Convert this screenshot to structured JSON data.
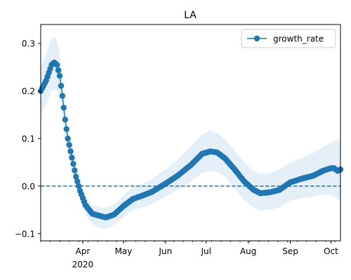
{
  "chart_data": {
    "type": "line",
    "title": "LA",
    "xlabel": "",
    "ylabel": "",
    "x_range": [
      "2020-03-01",
      "2020-10-08"
    ],
    "ylim": [
      -0.115,
      0.34
    ],
    "y_ticks": [
      -0.1,
      0.0,
      0.1,
      0.2,
      0.3
    ],
    "y_tick_labels": [
      "−0.1",
      "0.0",
      "0.1",
      "0.2",
      "0.3"
    ],
    "x_ticks": [
      {
        "date": "2020-04-01",
        "label": "Apr",
        "sublabel": "2020"
      },
      {
        "date": "2020-05-01",
        "label": "May",
        "sublabel": ""
      },
      {
        "date": "2020-06-01",
        "label": "Jun",
        "sublabel": ""
      },
      {
        "date": "2020-07-01",
        "label": "Jul",
        "sublabel": ""
      },
      {
        "date": "2020-08-01",
        "label": "Aug",
        "sublabel": ""
      },
      {
        "date": "2020-09-01",
        "label": "Sep",
        "sublabel": ""
      },
      {
        "date": "2020-10-01",
        "label": "Oct",
        "sublabel": ""
      }
    ],
    "minor_tick_step_days": 7,
    "grid": false,
    "legend": {
      "position": "top-right",
      "entries": [
        "growth_rate"
      ]
    },
    "reference_line": {
      "y": 0.0,
      "style": "dashed",
      "color": "#1f77b4"
    },
    "colors": {
      "series": "#1f77b4",
      "band": "#c6dbef"
    },
    "series": [
      {
        "name": "growth_rate",
        "x_start": "2020-03-01",
        "x_end": "2020-10-08",
        "anchors": [
          [
            "2020-03-01",
            0.2,
            0.15,
            0.25
          ],
          [
            "2020-03-05",
            0.222,
            0.17,
            0.28
          ],
          [
            "2020-03-09",
            0.255,
            0.2,
            0.31
          ],
          [
            "2020-03-11",
            0.26,
            0.205,
            0.315
          ],
          [
            "2020-03-13",
            0.255,
            0.2,
            0.305
          ],
          [
            "2020-03-15",
            0.232,
            0.185,
            0.28
          ],
          [
            "2020-03-17",
            0.19,
            0.15,
            0.235
          ],
          [
            "2020-03-19",
            0.14,
            0.105,
            0.175
          ],
          [
            "2020-03-21",
            0.1,
            0.07,
            0.13
          ],
          [
            "2020-03-24",
            0.06,
            0.035,
            0.085
          ],
          [
            "2020-03-27",
            0.02,
            0.0,
            0.04
          ],
          [
            "2020-03-30",
            -0.01,
            -0.03,
            0.005
          ],
          [
            "2020-04-03",
            -0.04,
            -0.06,
            -0.022
          ],
          [
            "2020-04-08",
            -0.058,
            -0.08,
            -0.04
          ],
          [
            "2020-04-14",
            -0.063,
            -0.088,
            -0.045
          ],
          [
            "2020-04-18",
            -0.066,
            -0.09,
            -0.045
          ],
          [
            "2020-04-24",
            -0.06,
            -0.082,
            -0.038
          ],
          [
            "2020-05-01",
            -0.042,
            -0.065,
            -0.02
          ],
          [
            "2020-05-08",
            -0.027,
            -0.05,
            -0.002
          ],
          [
            "2020-05-15",
            -0.02,
            -0.045,
            0.005
          ],
          [
            "2020-05-22",
            -0.012,
            -0.038,
            0.015
          ],
          [
            "2020-06-01",
            0.005,
            -0.022,
            0.035
          ],
          [
            "2020-06-10",
            0.022,
            -0.008,
            0.055
          ],
          [
            "2020-06-20",
            0.045,
            0.01,
            0.085
          ],
          [
            "2020-06-28",
            0.068,
            0.028,
            0.108
          ],
          [
            "2020-07-04",
            0.073,
            0.032,
            0.118
          ],
          [
            "2020-07-09",
            0.071,
            0.03,
            0.112
          ],
          [
            "2020-07-15",
            0.058,
            0.02,
            0.098
          ],
          [
            "2020-07-22",
            0.035,
            -0.005,
            0.075
          ],
          [
            "2020-07-29",
            0.01,
            -0.03,
            0.05
          ],
          [
            "2020-08-05",
            -0.008,
            -0.045,
            0.032
          ],
          [
            "2020-08-10",
            -0.015,
            -0.052,
            0.025
          ],
          [
            "2020-08-17",
            -0.013,
            -0.05,
            0.028
          ],
          [
            "2020-08-24",
            -0.008,
            -0.045,
            0.035
          ],
          [
            "2020-09-01",
            0.008,
            -0.03,
            0.05
          ],
          [
            "2020-09-10",
            0.016,
            -0.025,
            0.06
          ],
          [
            "2020-09-18",
            0.022,
            -0.022,
            0.07
          ],
          [
            "2020-09-25",
            0.032,
            -0.018,
            0.082
          ],
          [
            "2020-09-30",
            0.037,
            -0.018,
            0.09
          ],
          [
            "2020-10-03",
            0.038,
            -0.022,
            0.095
          ],
          [
            "2020-10-06",
            0.032,
            -0.028,
            0.098
          ],
          [
            "2020-10-08",
            0.035,
            -0.03,
            0.1
          ]
        ]
      }
    ]
  }
}
